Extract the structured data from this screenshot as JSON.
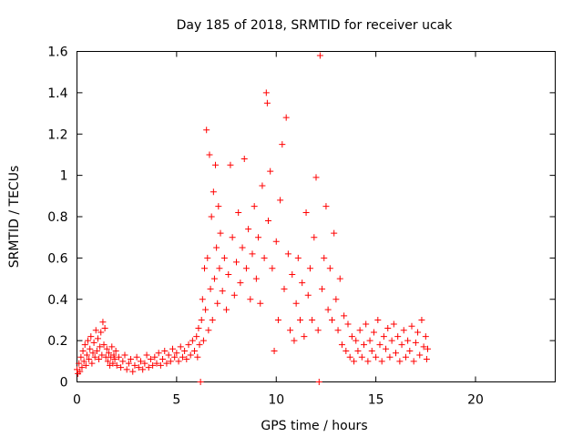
{
  "chart_data": {
    "type": "scatter",
    "title": "Day 185 of 2018, SRMTID for receiver ucak",
    "xlabel": "GPS time / hours",
    "ylabel": "SRMTID / TECUs",
    "xlim": [
      0,
      24
    ],
    "ylim": [
      0,
      1.6
    ],
    "xticks": [
      0,
      5,
      10,
      15,
      20
    ],
    "yticks": [
      0,
      0.2,
      0.4,
      0.6,
      0.8,
      1,
      1.2,
      1.4,
      1.6
    ],
    "xtick_labels": [
      "0",
      "5",
      "10",
      "15",
      "20"
    ],
    "ytick_labels": [
      "0",
      "0.2",
      "0.4",
      "0.6",
      "0.8",
      "1",
      "1.2",
      "1.4",
      "1.6"
    ],
    "grid": false,
    "marker": "+",
    "series": [
      {
        "name": "SRMTID",
        "color": "#ff0000",
        "points": [
          [
            0.0,
            0.06
          ],
          [
            0.05,
            0.04
          ],
          [
            0.1,
            0.09
          ],
          [
            0.15,
            0.05
          ],
          [
            0.2,
            0.12
          ],
          [
            0.25,
            0.07
          ],
          [
            0.3,
            0.15
          ],
          [
            0.35,
            0.1
          ],
          [
            0.4,
            0.18
          ],
          [
            0.45,
            0.08
          ],
          [
            0.5,
            0.13
          ],
          [
            0.55,
            0.2
          ],
          [
            0.6,
            0.11
          ],
          [
            0.65,
            0.16
          ],
          [
            0.7,
            0.22
          ],
          [
            0.75,
            0.09
          ],
          [
            0.8,
            0.14
          ],
          [
            0.85,
            0.19
          ],
          [
            0.9,
            0.12
          ],
          [
            0.95,
            0.25
          ],
          [
            1.0,
            0.15
          ],
          [
            1.05,
            0.21
          ],
          [
            1.1,
            0.11
          ],
          [
            1.15,
            0.17
          ],
          [
            1.2,
            0.24
          ],
          [
            1.25,
            0.13
          ],
          [
            1.3,
            0.29
          ],
          [
            1.35,
            0.18
          ],
          [
            1.4,
            0.26
          ],
          [
            1.45,
            0.12
          ],
          [
            1.5,
            0.16
          ],
          [
            1.55,
            0.1
          ],
          [
            1.6,
            0.14
          ],
          [
            1.65,
            0.08
          ],
          [
            1.7,
            0.12
          ],
          [
            1.75,
            0.17
          ],
          [
            1.8,
            0.09
          ],
          [
            1.85,
            0.13
          ],
          [
            1.9,
            0.11
          ],
          [
            1.95,
            0.15
          ],
          [
            2.0,
            0.08
          ],
          [
            2.1,
            0.12
          ],
          [
            2.2,
            0.07
          ],
          [
            2.3,
            0.1
          ],
          [
            2.4,
            0.13
          ],
          [
            2.5,
            0.06
          ],
          [
            2.6,
            0.09
          ],
          [
            2.7,
            0.11
          ],
          [
            2.8,
            0.05
          ],
          [
            2.9,
            0.08
          ],
          [
            3.0,
            0.12
          ],
          [
            3.1,
            0.07
          ],
          [
            3.2,
            0.1
          ],
          [
            3.3,
            0.06
          ],
          [
            3.4,
            0.09
          ],
          [
            3.5,
            0.13
          ],
          [
            3.6,
            0.07
          ],
          [
            3.7,
            0.11
          ],
          [
            3.8,
            0.08
          ],
          [
            3.9,
            0.12
          ],
          [
            4.0,
            0.09
          ],
          [
            4.1,
            0.14
          ],
          [
            4.2,
            0.08
          ],
          [
            4.3,
            0.11
          ],
          [
            4.4,
            0.15
          ],
          [
            4.5,
            0.09
          ],
          [
            4.6,
            0.13
          ],
          [
            4.7,
            0.1
          ],
          [
            4.8,
            0.16
          ],
          [
            4.9,
            0.12
          ],
          [
            5.0,
            0.14
          ],
          [
            5.1,
            0.1
          ],
          [
            5.2,
            0.17
          ],
          [
            5.3,
            0.12
          ],
          [
            5.4,
            0.15
          ],
          [
            5.5,
            0.11
          ],
          [
            5.6,
            0.18
          ],
          [
            5.7,
            0.13
          ],
          [
            5.8,
            0.2
          ],
          [
            5.9,
            0.15
          ],
          [
            6.0,
            0.22
          ],
          [
            6.05,
            0.12
          ],
          [
            6.1,
            0.26
          ],
          [
            6.15,
            0.18
          ],
          [
            6.2,
            0.0
          ],
          [
            6.25,
            0.3
          ],
          [
            6.3,
            0.4
          ],
          [
            6.35,
            0.2
          ],
          [
            6.4,
            0.55
          ],
          [
            6.45,
            0.35
          ],
          [
            6.5,
            1.22
          ],
          [
            6.55,
            0.6
          ],
          [
            6.6,
            0.25
          ],
          [
            6.65,
            1.1
          ],
          [
            6.7,
            0.45
          ],
          [
            6.75,
            0.8
          ],
          [
            6.8,
            0.3
          ],
          [
            6.85,
            0.92
          ],
          [
            6.9,
            0.5
          ],
          [
            6.95,
            1.05
          ],
          [
            7.0,
            0.65
          ],
          [
            7.05,
            0.38
          ],
          [
            7.1,
            0.85
          ],
          [
            7.15,
            0.55
          ],
          [
            7.2,
            0.72
          ],
          [
            7.3,
            0.44
          ],
          [
            7.4,
            0.6
          ],
          [
            7.5,
            0.35
          ],
          [
            7.6,
            0.52
          ],
          [
            7.7,
            1.05
          ],
          [
            7.8,
            0.7
          ],
          [
            7.9,
            0.42
          ],
          [
            8.0,
            0.58
          ],
          [
            8.1,
            0.82
          ],
          [
            8.2,
            0.48
          ],
          [
            8.3,
            0.65
          ],
          [
            8.4,
            1.08
          ],
          [
            8.5,
            0.55
          ],
          [
            8.6,
            0.74
          ],
          [
            8.7,
            0.4
          ],
          [
            8.8,
            0.62
          ],
          [
            8.9,
            0.85
          ],
          [
            9.0,
            0.5
          ],
          [
            9.1,
            0.7
          ],
          [
            9.2,
            0.38
          ],
          [
            9.3,
            0.95
          ],
          [
            9.4,
            0.6
          ],
          [
            9.5,
            1.4
          ],
          [
            9.55,
            1.35
          ],
          [
            9.6,
            0.78
          ],
          [
            9.7,
            1.02
          ],
          [
            9.8,
            0.55
          ],
          [
            9.9,
            0.15
          ],
          [
            10.0,
            0.68
          ],
          [
            10.1,
            0.3
          ],
          [
            10.2,
            0.88
          ],
          [
            10.3,
            1.15
          ],
          [
            10.4,
            0.45
          ],
          [
            10.5,
            1.28
          ],
          [
            10.6,
            0.62
          ],
          [
            10.7,
            0.25
          ],
          [
            10.8,
            0.52
          ],
          [
            10.9,
            0.2
          ],
          [
            11.0,
            0.38
          ],
          [
            11.1,
            0.6
          ],
          [
            11.2,
            0.3
          ],
          [
            11.3,
            0.48
          ],
          [
            11.4,
            0.22
          ],
          [
            11.5,
            0.82
          ],
          [
            11.6,
            0.42
          ],
          [
            11.7,
            0.55
          ],
          [
            11.8,
            0.3
          ],
          [
            11.9,
            0.7
          ],
          [
            12.0,
            0.99
          ],
          [
            12.1,
            0.25
          ],
          [
            12.15,
            0.0
          ],
          [
            12.2,
            1.58
          ],
          [
            12.3,
            0.45
          ],
          [
            12.4,
            0.6
          ],
          [
            12.5,
            0.85
          ],
          [
            12.6,
            0.35
          ],
          [
            12.7,
            0.55
          ],
          [
            12.8,
            0.3
          ],
          [
            12.9,
            0.72
          ],
          [
            13.0,
            0.4
          ],
          [
            13.1,
            0.25
          ],
          [
            13.2,
            0.5
          ],
          [
            13.3,
            0.18
          ],
          [
            13.4,
            0.32
          ],
          [
            13.5,
            0.15
          ],
          [
            13.6,
            0.28
          ],
          [
            13.7,
            0.12
          ],
          [
            13.8,
            0.22
          ],
          [
            13.9,
            0.1
          ],
          [
            14.0,
            0.2
          ],
          [
            14.1,
            0.15
          ],
          [
            14.2,
            0.25
          ],
          [
            14.3,
            0.12
          ],
          [
            14.4,
            0.18
          ],
          [
            14.5,
            0.28
          ],
          [
            14.6,
            0.1
          ],
          [
            14.7,
            0.2
          ],
          [
            14.8,
            0.15
          ],
          [
            14.9,
            0.24
          ],
          [
            15.0,
            0.12
          ],
          [
            15.1,
            0.3
          ],
          [
            15.2,
            0.18
          ],
          [
            15.3,
            0.1
          ],
          [
            15.4,
            0.22
          ],
          [
            15.5,
            0.16
          ],
          [
            15.6,
            0.26
          ],
          [
            15.7,
            0.12
          ],
          [
            15.8,
            0.2
          ],
          [
            15.9,
            0.28
          ],
          [
            16.0,
            0.14
          ],
          [
            16.1,
            0.22
          ],
          [
            16.2,
            0.1
          ],
          [
            16.3,
            0.18
          ],
          [
            16.4,
            0.25
          ],
          [
            16.5,
            0.12
          ],
          [
            16.6,
            0.2
          ],
          [
            16.7,
            0.15
          ],
          [
            16.8,
            0.27
          ],
          [
            16.9,
            0.1
          ],
          [
            17.0,
            0.19
          ],
          [
            17.1,
            0.24
          ],
          [
            17.2,
            0.13
          ],
          [
            17.3,
            0.3
          ],
          [
            17.4,
            0.17
          ],
          [
            17.5,
            0.22
          ],
          [
            17.55,
            0.11
          ],
          [
            17.6,
            0.16
          ]
        ]
      }
    ]
  }
}
